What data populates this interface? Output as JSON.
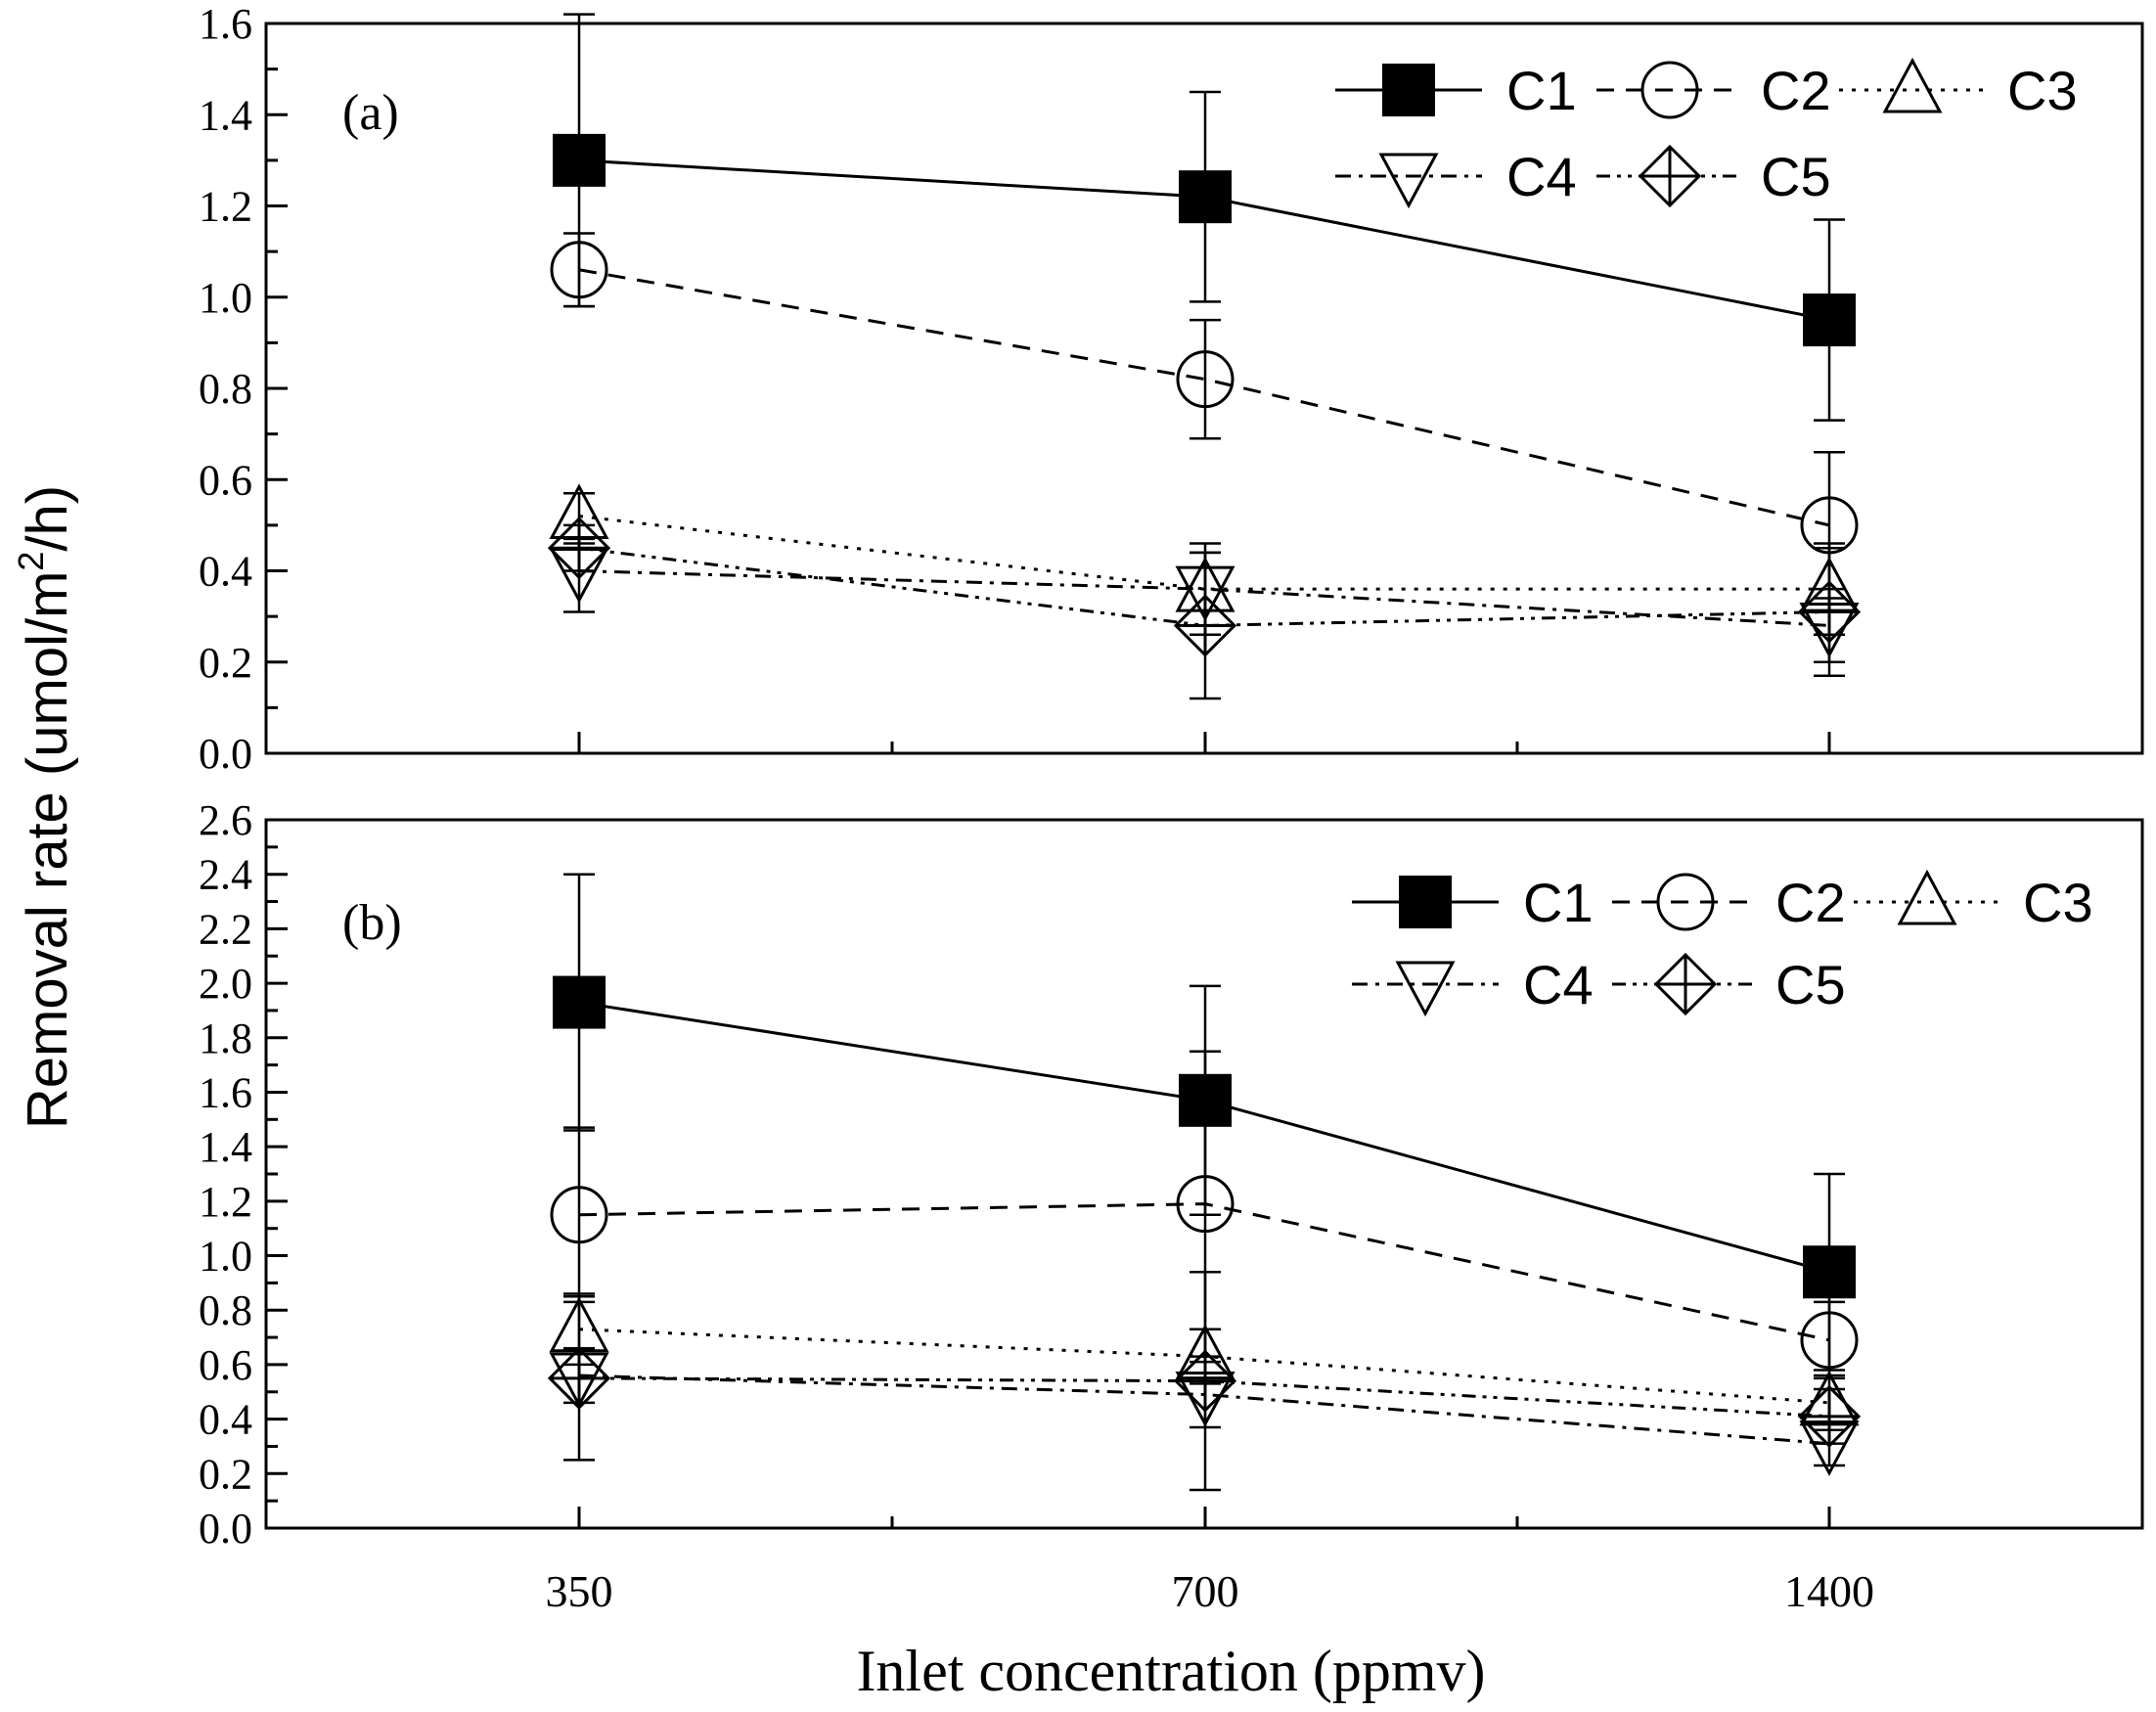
{
  "chart_data": {
    "type": "line",
    "categories": [
      "350",
      "700",
      "1400"
    ],
    "xlabel": "Inlet concentration (ppmv)",
    "ylabel": "Removal rate (umol/m²/h)",
    "ylabel_parts": {
      "pre": "Removal rate (umol/m",
      "sup": "2",
      "post": "/h)"
    },
    "panels": [
      {
        "label": "(a)",
        "ylim": [
          0,
          1.6
        ],
        "yticks": [
          "0.0",
          "0.2",
          "0.4",
          "0.6",
          "0.8",
          "1.0",
          "1.2",
          "1.4",
          "1.6"
        ],
        "series": [
          {
            "name": "C1",
            "values": [
              1.3,
              1.22,
              0.95
            ],
            "err_plus": [
              0.32,
              0.23,
              0.22
            ],
            "err_minus": [
              0.32,
              0.23,
              0.22
            ]
          },
          {
            "name": "C2",
            "values": [
              1.06,
              0.82,
              0.5
            ],
            "err_plus": [
              0.08,
              0.13,
              0.16
            ],
            "err_minus": [
              0.08,
              0.13,
              0.16
            ]
          },
          {
            "name": "C3",
            "values": [
              0.52,
              0.36,
              0.36
            ],
            "err_plus": [
              0.05,
              0.1,
              0.1
            ],
            "err_minus": [
              0.05,
              0.1,
              0.1
            ]
          },
          {
            "name": "C4",
            "values": [
              0.4,
              0.36,
              0.28
            ],
            "err_plus": [
              0.06,
              0.08,
              0.08
            ],
            "err_minus": [
              0.09,
              0.08,
              0.08
            ]
          },
          {
            "name": "C5",
            "values": [
              0.45,
              0.28,
              0.31
            ],
            "err_plus": [
              0.05,
              0.16,
              0.14
            ],
            "err_minus": [
              0.05,
              0.16,
              0.14
            ]
          }
        ]
      },
      {
        "label": "(b)",
        "ylim": [
          0,
          2.6
        ],
        "yticks": [
          "0.0",
          "0.2",
          "0.4",
          "0.6",
          "0.8",
          "1.0",
          "1.2",
          "1.4",
          "1.6",
          "1.8",
          "2.0",
          "2.2",
          "2.4",
          "2.6"
        ],
        "series": [
          {
            "name": "C1",
            "values": [
              1.93,
              1.57,
              0.94
            ],
            "err_plus": [
              0.47,
              0.42,
              0.36
            ],
            "err_minus": [
              0.47,
              0.42,
              0.36
            ]
          },
          {
            "name": "C2",
            "values": [
              1.15,
              1.19,
              0.69
            ],
            "err_plus": [
              0.32,
              0.56,
              0.14
            ],
            "err_minus": [
              0.32,
              0.56,
              0.14
            ]
          },
          {
            "name": "C3",
            "values": [
              0.73,
              0.63,
              0.46
            ],
            "err_plus": [
              0.13,
              0.1,
              0.1
            ],
            "err_minus": [
              0.13,
              0.1,
              0.1
            ]
          },
          {
            "name": "C4",
            "values": [
              0.56,
              0.49,
              0.31
            ],
            "err_plus": [
              0.1,
              0.12,
              0.08
            ],
            "err_minus": [
              0.1,
              0.12,
              0.08
            ]
          },
          {
            "name": "C5",
            "values": [
              0.55,
              0.54,
              0.41
            ],
            "err_plus": [
              0.3,
              0.4,
              0.1
            ],
            "err_minus": [
              0.3,
              0.4,
              0.1
            ]
          }
        ]
      }
    ],
    "legend_position": "top-right",
    "grid": false
  },
  "colors": {
    "line": "#000000",
    "background": "#ffffff"
  }
}
